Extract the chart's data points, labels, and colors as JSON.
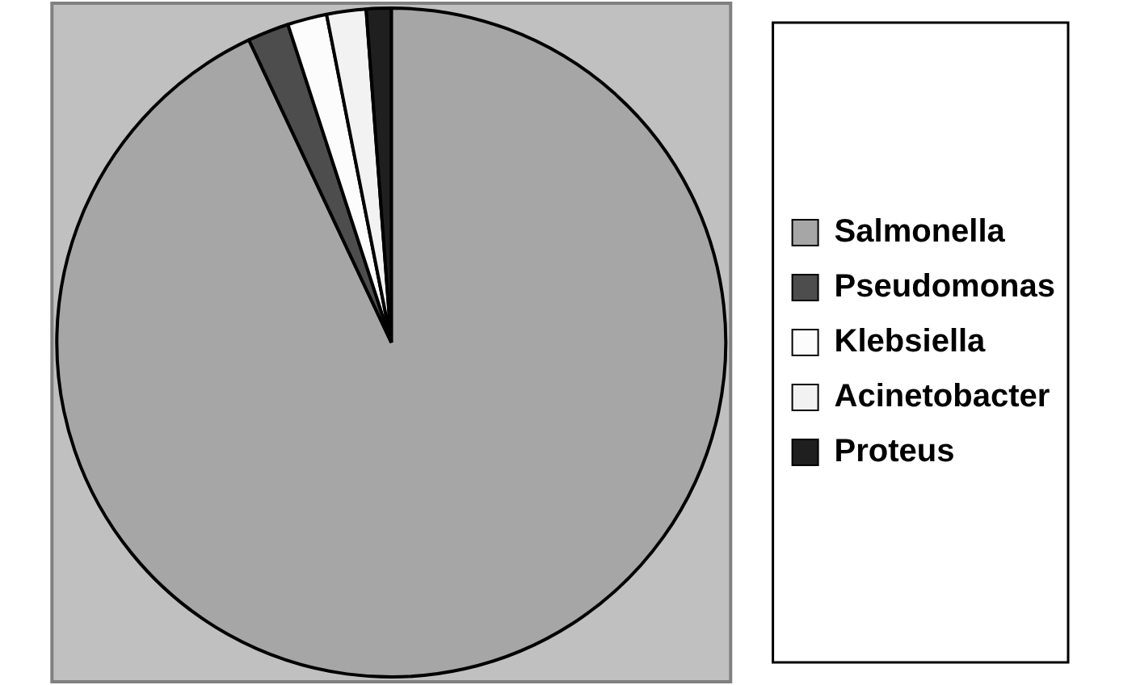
{
  "chart_data": {
    "type": "pie",
    "categories": [
      "Salmonella",
      "Pseudomonas",
      "Klebsiella",
      "Acinetobacter",
      "Proteus"
    ],
    "values": [
      93,
      2,
      1.9,
      1.9,
      1.2
    ],
    "colors": [
      "#a6a6a6",
      "#4d4d4d",
      "#fcfcfc",
      "#f2f2f2",
      "#1f1f1f"
    ],
    "legend": "right"
  }
}
